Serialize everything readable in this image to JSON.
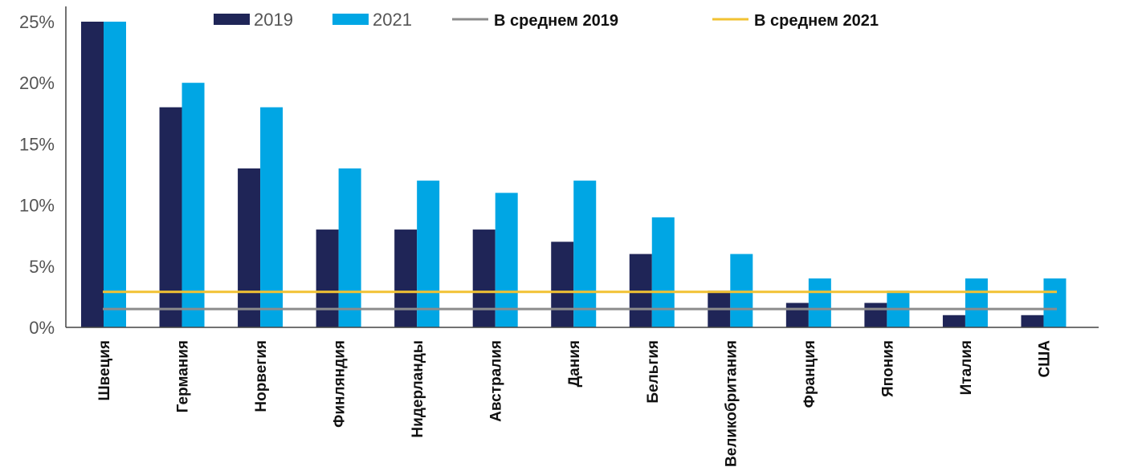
{
  "chart_data": {
    "type": "bar",
    "title": "",
    "xlabel": "",
    "ylabel": "",
    "ylim": [
      0,
      25
    ],
    "y_ticks": [
      0,
      5,
      10,
      15,
      20,
      25
    ],
    "y_tick_format": "{v}%",
    "grid": false,
    "legend_position": "top",
    "categories": [
      "Швеция",
      "Германия",
      "Норвегия",
      "Финляндия",
      "Нидерланды",
      "Австралия",
      "Дания",
      "Бельгия",
      "Великобритания",
      "Франция",
      "Япония",
      "Италия",
      "США"
    ],
    "series": [
      {
        "name": "2019",
        "color": "#1f2557",
        "values": [
          25,
          18,
          13,
          8,
          8,
          8,
          7,
          6,
          3,
          2,
          2,
          1,
          1
        ]
      },
      {
        "name": "2021",
        "color": "#00a6e4",
        "values": [
          25,
          20,
          18,
          13,
          12,
          11,
          12,
          9,
          6,
          4,
          3,
          4,
          4
        ]
      }
    ],
    "reference_lines": [
      {
        "name": "В среднем 2019",
        "color": "#8c8c8c",
        "value": 1.5
      },
      {
        "name": "В среднем 2021",
        "color": "#f2c232",
        "value": 2.9
      }
    ]
  }
}
